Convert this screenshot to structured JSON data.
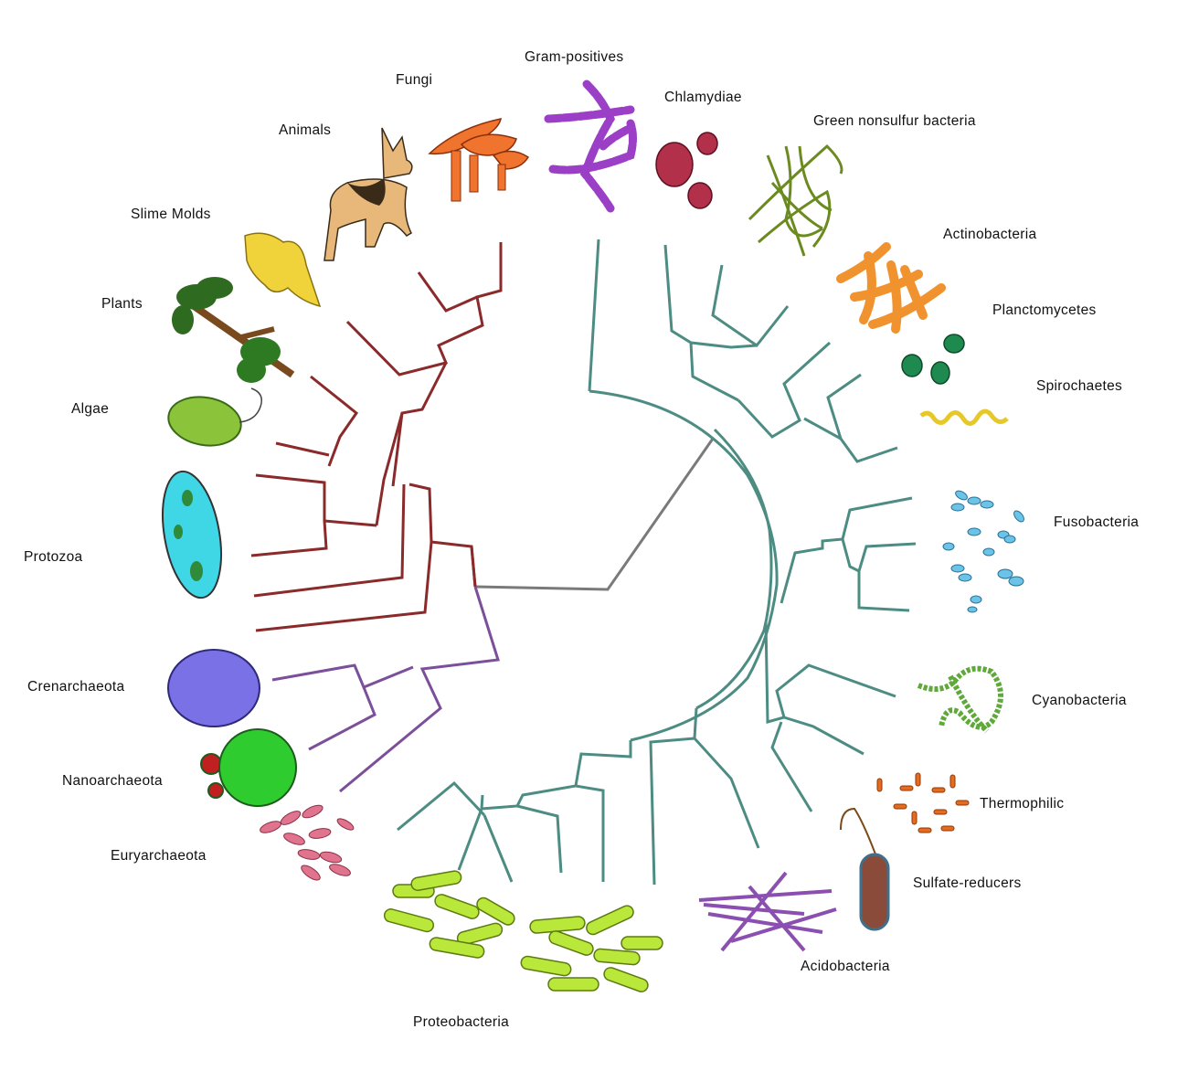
{
  "colors": {
    "eukaryota": "#8b2a2a",
    "archaea": "#7b4f9a",
    "bacteria": "#4c8c82",
    "root": "#7a7a7a"
  },
  "labels": {
    "gram_positives": "Gram-positives",
    "chlamydiae": "Chlamydiae",
    "green_nonsulfur": "Green nonsulfur bacteria",
    "actinobacteria": "Actinobacteria",
    "planctomycetes": "Planctomycetes",
    "spirochaetes": "Spirochaetes",
    "fusobacteria": "Fusobacteria",
    "cyanobacteria": "Cyanobacteria",
    "thermophilic": "Thermophilic",
    "sulfate_reducers": "Sulfate-reducers",
    "acidobacteria": "Acidobacteria",
    "proteobacteria": "Proteobacteria",
    "euryarchaeota": "Euryarchaeota",
    "nanoarchaeota": "Nanoarchaeota",
    "crenarchaeota": "Crenarchaeota",
    "protozoa": "Protozoa",
    "algae": "Algae",
    "plants": "Plants",
    "slime_molds": "Slime Molds",
    "animals": "Animals",
    "fungi": "Fungi"
  },
  "icons": {
    "gram_positives": "gram-positive-chain-icon",
    "chlamydiae": "chlamydiae-cluster-icon",
    "green_nonsulfur": "green-filament-icon",
    "actinobacteria": "actinobacteria-branches-icon",
    "planctomycetes": "planctomycetes-cells-icon",
    "spirochaetes": "spirochaete-spiral-icon",
    "fusobacteria": "fusobacteria-rods-icon",
    "cyanobacteria": "cyanobacteria-chain-icon",
    "thermophilic": "thermophilic-rods-icon",
    "sulfate_reducers": "sulfate-reducer-cell-icon",
    "acidobacteria": "acidobacteria-filaments-icon",
    "proteobacteria": "proteobacteria-rods-icon",
    "euryarchaeota": "euryarchaeota-cells-icon",
    "nanoarchaeota": "nanoarchaeota-cell-icon",
    "crenarchaeota": "crenarchaeota-cell-icon",
    "protozoa": "paramecium-icon",
    "algae": "algae-cell-icon",
    "plants": "fern-plant-icon",
    "slime_molds": "slime-mold-icon",
    "animals": "dog-icon",
    "fungi": "mushroom-icon"
  }
}
